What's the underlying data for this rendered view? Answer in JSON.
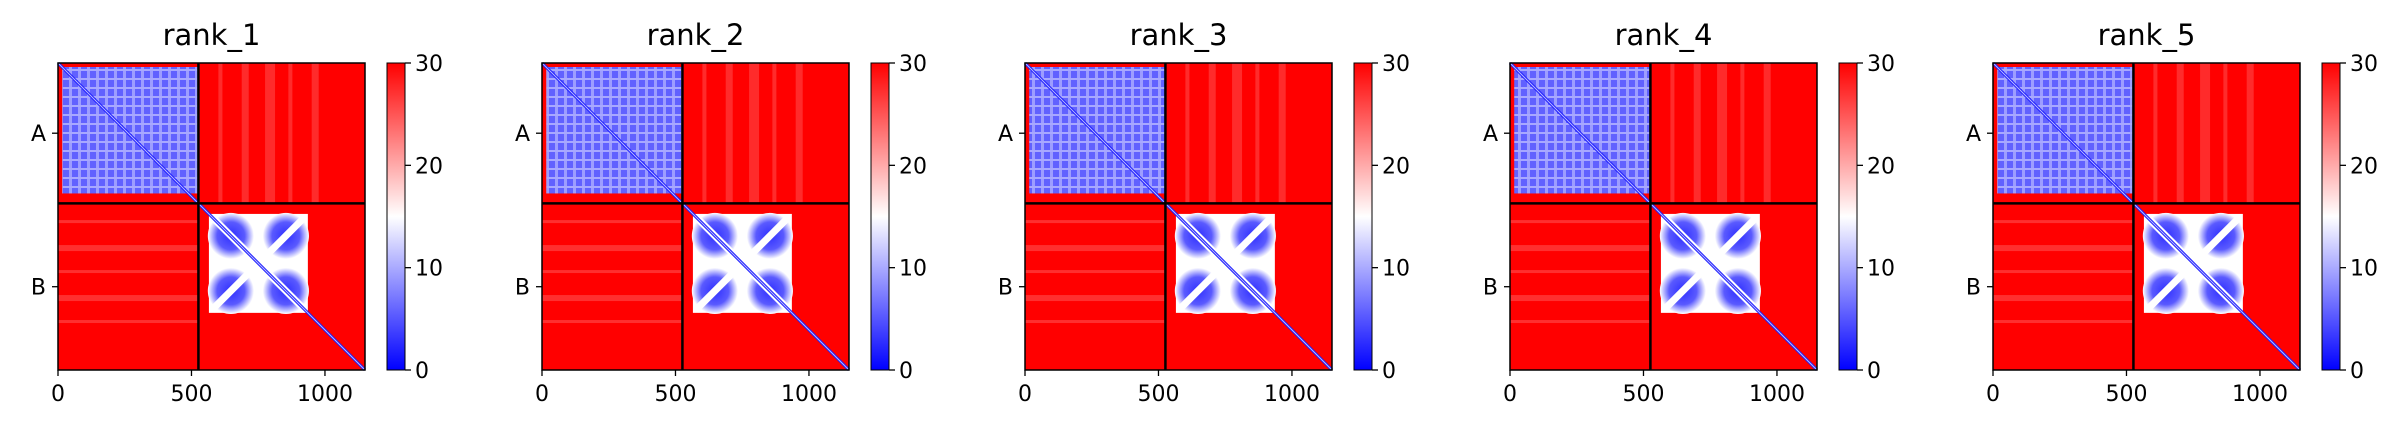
{
  "figure": {
    "colors": {
      "low": "#0000ff",
      "mid": "#ffffff",
      "high": "#ff0000",
      "frame": "#000000"
    }
  },
  "chart_data": [
    {
      "type": "heatmap",
      "title": "rank_1",
      "xlabel": "",
      "ylabel": "",
      "matrix_size": 1150,
      "chain_boundary": 526,
      "xlim": [
        0,
        1150
      ],
      "xticks": [
        0,
        500,
        1000
      ],
      "yticks": [
        {
          "label": "A",
          "value": 263
        },
        {
          "label": "B",
          "value": 838
        }
      ],
      "colorbar": {
        "range": [
          0,
          30
        ],
        "ticks": [
          0,
          10,
          20,
          30
        ]
      },
      "chains": [
        {
          "name": "A",
          "range": [
            0,
            526
          ]
        },
        {
          "name": "B",
          "range": [
            526,
            1150
          ]
        }
      ]
    },
    {
      "type": "heatmap",
      "title": "rank_2",
      "xlabel": "",
      "ylabel": "",
      "matrix_size": 1150,
      "chain_boundary": 526,
      "xlim": [
        0,
        1150
      ],
      "xticks": [
        0,
        500,
        1000
      ],
      "yticks": [
        {
          "label": "A",
          "value": 263
        },
        {
          "label": "B",
          "value": 838
        }
      ],
      "colorbar": {
        "range": [
          0,
          30
        ],
        "ticks": [
          0,
          10,
          20,
          30
        ]
      },
      "chains": [
        {
          "name": "A",
          "range": [
            0,
            526
          ]
        },
        {
          "name": "B",
          "range": [
            526,
            1150
          ]
        }
      ]
    },
    {
      "type": "heatmap",
      "title": "rank_3",
      "xlabel": "",
      "ylabel": "",
      "matrix_size": 1150,
      "chain_boundary": 526,
      "xlim": [
        0,
        1150
      ],
      "xticks": [
        0,
        500,
        1000
      ],
      "yticks": [
        {
          "label": "A",
          "value": 263
        },
        {
          "label": "B",
          "value": 838
        }
      ],
      "colorbar": {
        "range": [
          0,
          30
        ],
        "ticks": [
          0,
          10,
          20,
          30
        ]
      },
      "chains": [
        {
          "name": "A",
          "range": [
            0,
            526
          ]
        },
        {
          "name": "B",
          "range": [
            526,
            1150
          ]
        }
      ]
    },
    {
      "type": "heatmap",
      "title": "rank_4",
      "xlabel": "",
      "ylabel": "",
      "matrix_size": 1150,
      "chain_boundary": 526,
      "xlim": [
        0,
        1150
      ],
      "xticks": [
        0,
        500,
        1000
      ],
      "yticks": [
        {
          "label": "A",
          "value": 263
        },
        {
          "label": "B",
          "value": 838
        }
      ],
      "colorbar": {
        "range": [
          0,
          30
        ],
        "ticks": [
          0,
          10,
          20,
          30
        ]
      },
      "chains": [
        {
          "name": "A",
          "range": [
            0,
            526
          ]
        },
        {
          "name": "B",
          "range": [
            526,
            1150
          ]
        }
      ]
    },
    {
      "type": "heatmap",
      "title": "rank_5",
      "xlabel": "",
      "ylabel": "",
      "matrix_size": 1150,
      "chain_boundary": 526,
      "xlim": [
        0,
        1150
      ],
      "xticks": [
        0,
        500,
        1000
      ],
      "yticks": [
        {
          "label": "A",
          "value": 263
        },
        {
          "label": "B",
          "value": 838
        }
      ],
      "colorbar": {
        "range": [
          0,
          30
        ],
        "ticks": [
          0,
          10,
          20,
          30
        ]
      },
      "chains": [
        {
          "name": "A",
          "range": [
            0,
            526
          ]
        },
        {
          "name": "B",
          "range": [
            526,
            1150
          ]
        }
      ]
    }
  ]
}
